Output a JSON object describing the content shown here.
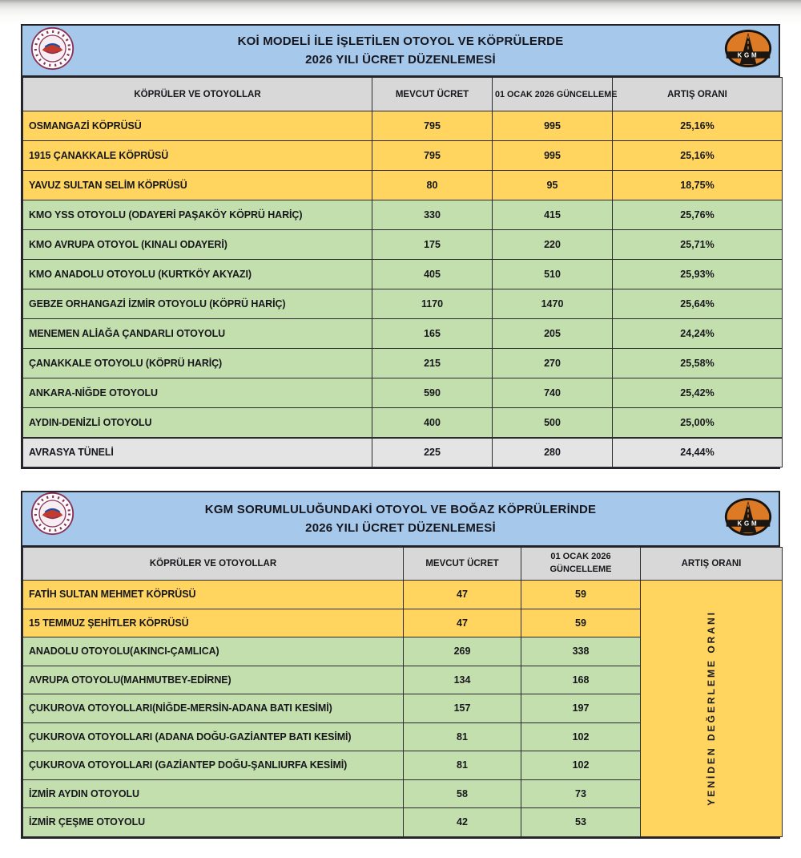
{
  "logos": {
    "kgm_text": "KGM"
  },
  "colors": {
    "title_band_blue": "#a6c8ea",
    "header_gray": "#d8d8d8",
    "bridge_yellow": "#ffd45f",
    "highway_green": "#c3dfae",
    "tunnel_gray": "#e4e4e5",
    "border_dark": "#23232a",
    "ministry_maroon": "#8a3058",
    "kgm_orange": "#dd7a25"
  },
  "table1": {
    "title_line1": "KOİ MODELİ İLE İŞLETİLEN OTOYOL VE KÖPRÜLERDE",
    "title_line2": "2026 YILI ÜCRET DÜZENLEMESİ",
    "headers": [
      "KÖPRÜLER VE OTOYOLLAR",
      "MEVCUT ÜCRET",
      "01 OCAK 2026 GÜNCELLEME",
      "ARTIŞ ORANI"
    ],
    "rows": [
      {
        "name": "OSMANGAZİ KÖPRÜSÜ",
        "current": "795",
        "updated": "995",
        "increase": "25,16%",
        "type": "yellow"
      },
      {
        "name": "1915 ÇANAKKALE KÖPRÜSÜ",
        "current": "795",
        "updated": "995",
        "increase": "25,16%",
        "type": "yellow"
      },
      {
        "name": "YAVUZ SULTAN SELİM KÖPRÜSÜ",
        "current": "80",
        "updated": "95",
        "increase": "18,75%",
        "type": "yellow"
      },
      {
        "name": "KMO YSS OTOYOLU (ODAYERİ PAŞAKÖY KÖPRÜ HARİÇ)",
        "current": "330",
        "updated": "415",
        "increase": "25,76%",
        "type": "green"
      },
      {
        "name": "KMO AVRUPA OTOYOL (KINALI ODAYERİ)",
        "current": "175",
        "updated": "220",
        "increase": "25,71%",
        "type": "green"
      },
      {
        "name": "KMO ANADOLU OTOYOLU (KURTKÖY AKYAZI)",
        "current": "405",
        "updated": "510",
        "increase": "25,93%",
        "type": "green"
      },
      {
        "name": "GEBZE ORHANGAZİ İZMİR OTOYOLU (KÖPRÜ HARİÇ)",
        "current": "1170",
        "updated": "1470",
        "increase": "25,64%",
        "type": "green"
      },
      {
        "name": "MENEMEN ALİAĞA ÇANDARLI OTOYOLU",
        "current": "165",
        "updated": "205",
        "increase": "24,24%",
        "type": "green"
      },
      {
        "name": "ÇANAKKALE OTOYOLU (KÖPRÜ HARİÇ)",
        "current": "215",
        "updated": "270",
        "increase": "25,58%",
        "type": "green"
      },
      {
        "name": "ANKARA-NİĞDE OTOYOLU",
        "current": "590",
        "updated": "740",
        "increase": "25,42%",
        "type": "green"
      },
      {
        "name": "AYDIN-DENİZLİ OTOYOLU",
        "current": "400",
        "updated": "500",
        "increase": "25,00%",
        "type": "green"
      },
      {
        "name": "AVRASYA TÜNELİ",
        "current": "225",
        "updated": "280",
        "increase": "24,44%",
        "type": "gray"
      }
    ]
  },
  "table2": {
    "title_line1": "KGM SORUMLULUĞUNDAKİ OTOYOL VE BOĞAZ KÖPRÜLERİNDE",
    "title_line2": "2026 YILI ÜCRET DÜZENLEMESİ",
    "headers": [
      "KÖPRÜLER VE OTOYOLLAR",
      "MEVCUT ÜCRET",
      "01 OCAK 2026 GÜNCELLEME",
      "ARTIŞ ORANI"
    ],
    "merged_note": "YENİDEN DEĞERLEME ORANI",
    "rows": [
      {
        "name": "FATİH SULTAN MEHMET KÖPRÜSÜ",
        "current": "47",
        "updated": "59",
        "type": "yellow"
      },
      {
        "name": "15 TEMMUZ ŞEHİTLER KÖPRÜSÜ",
        "current": "47",
        "updated": "59",
        "type": "yellow"
      },
      {
        "name": "ANADOLU OTOYOLU(AKINCI-ÇAMLICA)",
        "current": "269",
        "updated": "338",
        "type": "green"
      },
      {
        "name": "AVRUPA OTOYOLU(MAHMUTBEY-EDİRNE)",
        "current": "134",
        "updated": "168",
        "type": "green"
      },
      {
        "name": "ÇUKUROVA OTOYOLLARI(NİĞDE-MERSİN-ADANA BATI KESİMİ)",
        "current": "157",
        "updated": "197",
        "type": "green"
      },
      {
        "name": "ÇUKUROVA OTOYOLLARI (ADANA DOĞU-GAZİANTEP BATI KESİMİ)",
        "current": "81",
        "updated": "102",
        "type": "green"
      },
      {
        "name": "ÇUKUROVA OTOYOLLARI (GAZİANTEP DOĞU-ŞANLIURFA KESİMİ)",
        "current": "81",
        "updated": "102",
        "type": "green"
      },
      {
        "name": "İZMİR AYDIN OTOYOLU",
        "current": "58",
        "updated": "73",
        "type": "green"
      },
      {
        "name": "İZMİR ÇEŞME OTOYOLU",
        "current": "42",
        "updated": "53",
        "type": "green"
      }
    ]
  }
}
